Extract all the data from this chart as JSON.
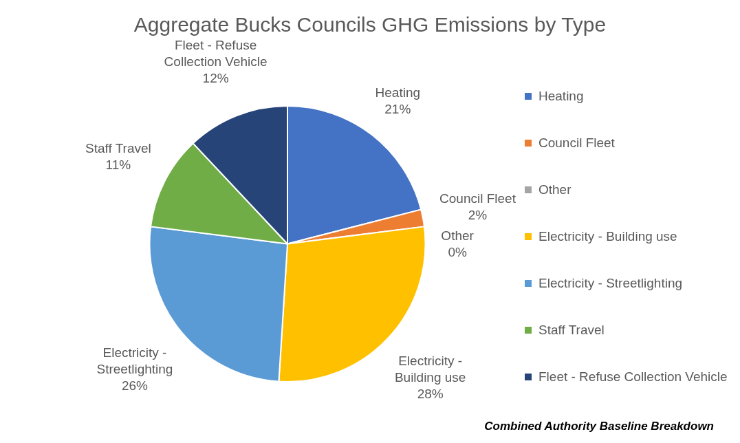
{
  "chart_data": {
    "type": "pie",
    "title": "Aggregate Bucks Councils GHG Emissions by Type",
    "categories": [
      "Heating",
      "Council Fleet",
      "Other",
      "Electricity - Building use",
      "Electricity - Streetlighting",
      "Staff Travel",
      "Fleet - Refuse Collection Vehicle"
    ],
    "values": [
      21,
      2,
      0,
      28,
      26,
      11,
      12
    ],
    "colors": [
      "#4472c4",
      "#ed7d31",
      "#a5a5a5",
      "#ffc000",
      "#5b9bd5",
      "#70ad47",
      "#264478"
    ],
    "value_labels": [
      "21%",
      "2%",
      "0%",
      "28%",
      "26%",
      "11%",
      "12%"
    ],
    "legend": "right",
    "annotations": [
      "Combined Authority Baseline Breakdown"
    ]
  }
}
